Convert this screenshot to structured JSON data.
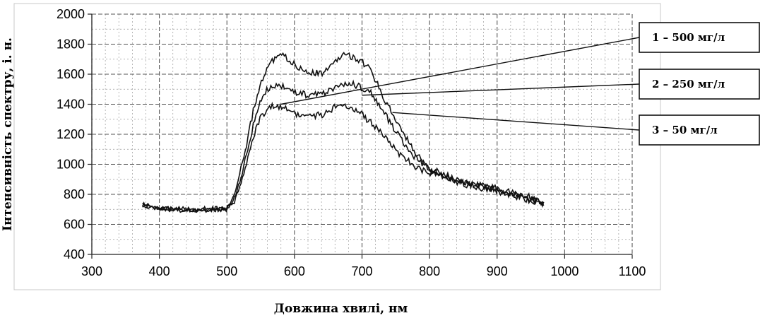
{
  "chart_data": {
    "type": "line",
    "xlabel": "Довжина хвилі, нм",
    "ylabel": "Інтенсивність спектру, і. н.",
    "xlim": [
      300,
      1100
    ],
    "ylim": [
      400,
      2000
    ],
    "xticks": [
      300,
      400,
      500,
      600,
      700,
      800,
      900,
      1000,
      1100
    ],
    "yticks": [
      400,
      600,
      800,
      1000,
      1200,
      1400,
      1600,
      1800,
      2000
    ],
    "grid": true,
    "legend_position": "right",
    "series": [
      {
        "name": "1 – 500 мг/л",
        "color": "#111111",
        "x": [
          375,
          400,
          450,
          500,
          510,
          520,
          530,
          540,
          550,
          560,
          570,
          580,
          590,
          600,
          620,
          640,
          660,
          670,
          680,
          690,
          700,
          710,
          720,
          730,
          740,
          750,
          760,
          780,
          800,
          850,
          900,
          950,
          970
        ],
        "y": [
          740,
          710,
          700,
          710,
          780,
          950,
          1150,
          1380,
          1540,
          1640,
          1700,
          1730,
          1700,
          1660,
          1620,
          1600,
          1680,
          1720,
          1730,
          1700,
          1680,
          1640,
          1560,
          1460,
          1380,
          1300,
          1210,
          1080,
          960,
          880,
          840,
          780,
          730
        ]
      },
      {
        "name": "2 – 250 мг/л",
        "color": "#111111",
        "x": [
          375,
          400,
          450,
          500,
          510,
          520,
          530,
          540,
          550,
          560,
          570,
          580,
          590,
          600,
          620,
          640,
          660,
          670,
          680,
          690,
          700,
          710,
          720,
          730,
          740,
          750,
          760,
          780,
          800,
          850,
          900,
          950,
          970
        ],
        "y": [
          730,
          705,
          695,
          705,
          760,
          900,
          1080,
          1280,
          1420,
          1500,
          1530,
          1520,
          1500,
          1480,
          1460,
          1470,
          1510,
          1530,
          1540,
          1530,
          1510,
          1490,
          1430,
          1360,
          1290,
          1220,
          1150,
          1040,
          970,
          880,
          830,
          770,
          730
        ]
      },
      {
        "name": "3 – 50 мг/л",
        "color": "#111111",
        "x": [
          375,
          400,
          450,
          500,
          510,
          520,
          530,
          540,
          550,
          560,
          570,
          580,
          590,
          600,
          620,
          640,
          660,
          670,
          680,
          690,
          700,
          710,
          720,
          730,
          740,
          750,
          760,
          780,
          800,
          850,
          900,
          950,
          970
        ],
        "y": [
          720,
          700,
          690,
          700,
          740,
          860,
          1030,
          1200,
          1310,
          1370,
          1390,
          1380,
          1360,
          1340,
          1320,
          1330,
          1380,
          1400,
          1390,
          1360,
          1330,
          1290,
          1250,
          1200,
          1150,
          1100,
          1050,
          980,
          940,
          870,
          820,
          760,
          730
        ]
      }
    ]
  }
}
